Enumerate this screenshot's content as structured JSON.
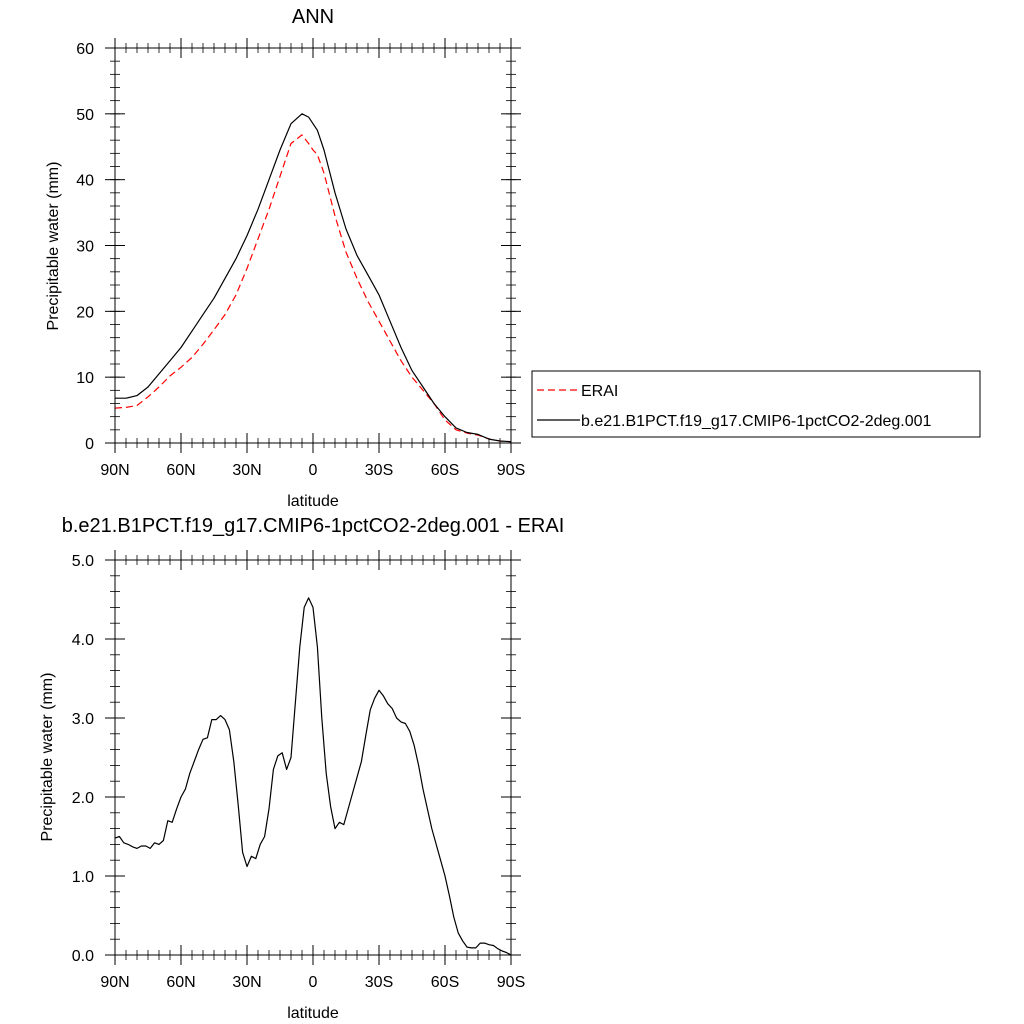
{
  "chart_data": [
    {
      "type": "line",
      "title": "ANN",
      "xlabel": "latitude",
      "ylabel": "Precipitable water (mm)",
      "xlim": [
        90,
        -90
      ],
      "ylim": [
        0,
        60
      ],
      "x_ticks": [
        90,
        60,
        30,
        0,
        -30,
        -60,
        -90
      ],
      "x_tick_labels": [
        "90N",
        "60N",
        "30N",
        "0",
        "30S",
        "60S",
        "90S"
      ],
      "y_ticks": [
        0,
        10,
        20,
        30,
        40,
        50,
        60
      ],
      "y_tick_labels": [
        "0",
        "10",
        "20",
        "30",
        "40",
        "50",
        "60"
      ],
      "x_minor_step": 5,
      "y_minor_step": 2,
      "legend": "outside-right",
      "series": [
        {
          "name": "ERAI",
          "color": "#ff0000",
          "dash": "dashed",
          "x": [
            90,
            85,
            80,
            75,
            70,
            65,
            60,
            55,
            50,
            45,
            40,
            35,
            30,
            25,
            20,
            15,
            10,
            5,
            2,
            0,
            -2,
            -5,
            -10,
            -15,
            -20,
            -25,
            -30,
            -35,
            -40,
            -45,
            -50,
            -55,
            -60,
            -65,
            -70,
            -75,
            -80,
            -85,
            -90
          ],
          "values": [
            5.3,
            5.4,
            5.7,
            7.0,
            8.5,
            10.2,
            11.5,
            13.0,
            15.0,
            17.2,
            19.5,
            22.5,
            26.5,
            31.0,
            35.5,
            40.5,
            45.5,
            46.8,
            45.5,
            44.5,
            43.8,
            41.0,
            34.5,
            29.0,
            25.0,
            21.5,
            18.5,
            15.5,
            12.5,
            10.0,
            8.0,
            6.0,
            3.5,
            2.0,
            1.5,
            1.2,
            0.6,
            0.3,
            0.2
          ]
        },
        {
          "name": "b.e21.B1PCT.f19_g17.CMIP6-1pctCO2-2deg.001",
          "color": "#000000",
          "dash": "solid",
          "x": [
            90,
            85,
            80,
            75,
            70,
            65,
            60,
            55,
            50,
            45,
            40,
            35,
            30,
            25,
            20,
            15,
            10,
            5,
            2,
            0,
            -2,
            -5,
            -10,
            -15,
            -20,
            -25,
            -30,
            -35,
            -40,
            -45,
            -50,
            -55,
            -60,
            -65,
            -70,
            -75,
            -80,
            -85,
            -90
          ],
          "values": [
            6.8,
            6.8,
            7.2,
            8.5,
            10.5,
            12.5,
            14.5,
            17.0,
            19.5,
            22.0,
            25.0,
            28.0,
            31.5,
            35.5,
            40.0,
            44.5,
            48.5,
            50.0,
            49.5,
            48.5,
            47.5,
            44.5,
            38.0,
            32.5,
            28.5,
            25.5,
            22.5,
            18.5,
            14.5,
            11.0,
            8.5,
            6.0,
            4.0,
            2.3,
            1.6,
            1.3,
            0.6,
            0.3,
            0.2
          ]
        }
      ]
    },
    {
      "type": "line",
      "title": "b.e21.B1PCT.f19_g17.CMIP6-1pctCO2-2deg.001 - ERAI",
      "xlabel": "latitude",
      "ylabel": "Precipitable water (mm)",
      "xlim": [
        90,
        -90
      ],
      "ylim": [
        0,
        5
      ],
      "x_ticks": [
        90,
        60,
        30,
        0,
        -30,
        -60,
        -90
      ],
      "x_tick_labels": [
        "90N",
        "60N",
        "30N",
        "0",
        "30S",
        "60S",
        "90S"
      ],
      "y_ticks": [
        0,
        1,
        2,
        3,
        4,
        5
      ],
      "y_tick_labels": [
        "0.0",
        "1.0",
        "2.0",
        "3.0",
        "4.0",
        "5.0"
      ],
      "x_minor_step": 5,
      "y_minor_step": 0.2,
      "series": [
        {
          "color": "#000000",
          "dash": "solid",
          "x": [
            90,
            88,
            86,
            84,
            82,
            80,
            78,
            76,
            74,
            72,
            70,
            68,
            66,
            64,
            62,
            60,
            58,
            56,
            54,
            52,
            50,
            48,
            46,
            44,
            42,
            40,
            38,
            36,
            34,
            32,
            30,
            28,
            26,
            24,
            22,
            20,
            18,
            16,
            14,
            12,
            10,
            8,
            6,
            4,
            2,
            0,
            -2,
            -4,
            -6,
            -8,
            -10,
            -12,
            -14,
            -16,
            -18,
            -20,
            -22,
            -24,
            -26,
            -28,
            -30,
            -32,
            -34,
            -36,
            -38,
            -40,
            -42,
            -44,
            -46,
            -48,
            -50,
            -52,
            -54,
            -56,
            -58,
            -60,
            -62,
            -64,
            -66,
            -68,
            -70,
            -72,
            -74,
            -76,
            -78,
            -80,
            -82,
            -84,
            -86,
            -88,
            -90
          ],
          "values": [
            1.48,
            1.5,
            1.42,
            1.4,
            1.37,
            1.35,
            1.38,
            1.38,
            1.35,
            1.42,
            1.4,
            1.45,
            1.7,
            1.68,
            1.85,
            2.0,
            2.1,
            2.3,
            2.45,
            2.6,
            2.73,
            2.75,
            2.98,
            2.98,
            3.03,
            2.98,
            2.85,
            2.45,
            1.9,
            1.3,
            1.12,
            1.25,
            1.22,
            1.4,
            1.5,
            1.85,
            2.35,
            2.52,
            2.56,
            2.35,
            2.5,
            3.2,
            3.9,
            4.4,
            4.52,
            4.4,
            3.9,
            3.0,
            2.3,
            1.88,
            1.6,
            1.68,
            1.65,
            1.85,
            2.05,
            2.25,
            2.45,
            2.78,
            3.1,
            3.25,
            3.35,
            3.28,
            3.18,
            3.12,
            3.0,
            2.95,
            2.93,
            2.83,
            2.65,
            2.4,
            2.1,
            1.85,
            1.6,
            1.4,
            1.2,
            1.0,
            0.75,
            0.48,
            0.28,
            0.18,
            0.1,
            0.09,
            0.09,
            0.15,
            0.15,
            0.13,
            0.12,
            0.08,
            0.05,
            0.03,
            0.0
          ]
        }
      ]
    }
  ]
}
